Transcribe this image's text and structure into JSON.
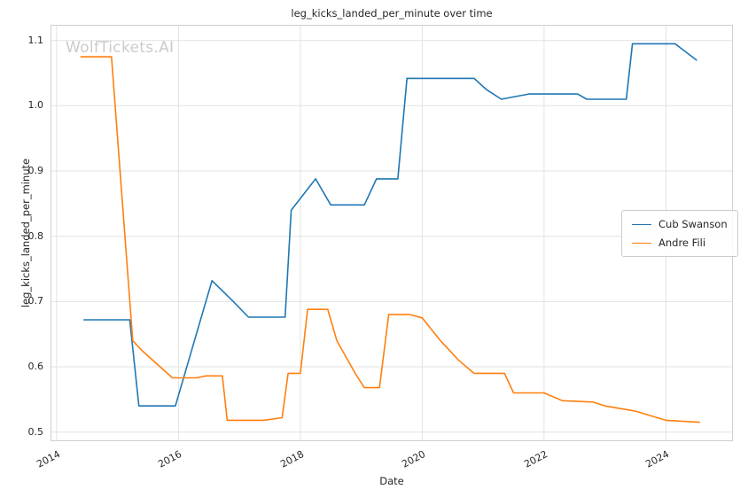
{
  "chart": {
    "title": "leg_kicks_landed_per_minute over time",
    "xlabel": "Date",
    "ylabel": "leg_kicks_landed_per_minute",
    "watermark": "WolfTickets.AI"
  },
  "chart_data": {
    "type": "line",
    "title": "leg_kicks_landed_per_minute over time",
    "xlabel": "Date",
    "ylabel": "leg_kicks_landed_per_minute",
    "xlim": [
      2013.9,
      2025.1
    ],
    "ylim": [
      0.486,
      1.124
    ],
    "xticks": [
      2014,
      2016,
      2018,
      2020,
      2022,
      2024
    ],
    "yticks": [
      0.5,
      0.6,
      0.7,
      0.8,
      0.9,
      1.0,
      1.1
    ],
    "grid": true,
    "legend_position": "center right",
    "series": [
      {
        "name": "Cub Swanson",
        "color": "#1f77b4",
        "x": [
          2014.45,
          2015.2,
          2015.35,
          2015.95,
          2016.2,
          2016.55,
          2016.9,
          2017.15,
          2017.75,
          2017.85,
          2018.25,
          2018.5,
          2019.05,
          2019.25,
          2019.6,
          2019.75,
          2020.85,
          2021.05,
          2021.3,
          2021.75,
          2022.55,
          2022.7,
          2023.35,
          2023.45,
          2024.15,
          2024.5
        ],
        "y": [
          0.672,
          0.672,
          0.54,
          0.54,
          0.62,
          0.732,
          0.7,
          0.676,
          0.676,
          0.84,
          0.888,
          0.848,
          0.848,
          0.888,
          0.888,
          1.042,
          1.042,
          1.025,
          1.01,
          1.018,
          1.018,
          1.01,
          1.01,
          1.095,
          1.095,
          1.07
        ]
      },
      {
        "name": "Andre Fili",
        "color": "#ff7f0e",
        "x": [
          2014.4,
          2014.9,
          2015.25,
          2015.4,
          2015.9,
          2016.3,
          2016.45,
          2016.72,
          2016.8,
          2017.4,
          2017.7,
          2017.8,
          2018.0,
          2018.12,
          2018.45,
          2018.6,
          2018.9,
          2019.05,
          2019.3,
          2019.45,
          2019.8,
          2020.0,
          2020.3,
          2020.6,
          2020.85,
          2021.35,
          2021.5,
          2022.0,
          2022.3,
          2022.8,
          2023.0,
          2023.5,
          2024.0,
          2024.55
        ],
        "y": [
          1.075,
          1.075,
          0.64,
          0.625,
          0.583,
          0.583,
          0.586,
          0.586,
          0.518,
          0.518,
          0.522,
          0.59,
          0.59,
          0.688,
          0.688,
          0.64,
          0.59,
          0.568,
          0.568,
          0.68,
          0.68,
          0.675,
          0.64,
          0.61,
          0.59,
          0.59,
          0.56,
          0.56,
          0.548,
          0.546,
          0.54,
          0.532,
          0.518,
          0.515
        ]
      }
    ]
  }
}
